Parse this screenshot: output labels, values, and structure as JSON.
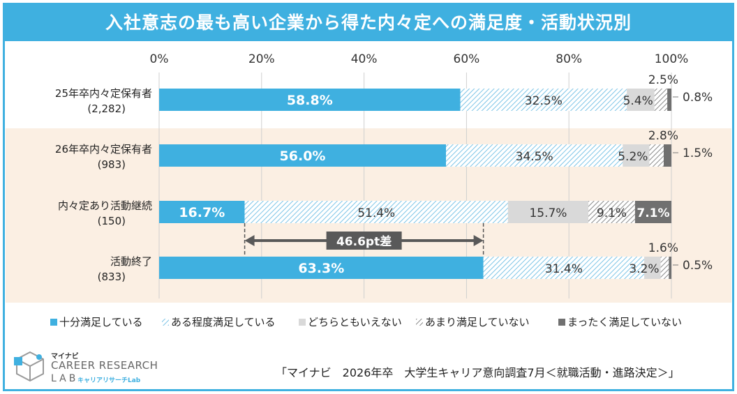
{
  "title": "入社意志の最も高い企業から得た内々定への満足度・活動状況別",
  "chart_data": {
    "type": "bar",
    "orientation": "horizontal",
    "stacked": true,
    "x_ticks": [
      "0%",
      "20%",
      "40%",
      "60%",
      "80%",
      "100%"
    ],
    "xlim": [
      0,
      100
    ],
    "categories": [
      {
        "label": "25年卒内々定保有者",
        "n": "(2,282)"
      },
      {
        "label": "26年卒内々定保有者",
        "n": "(983)"
      },
      {
        "label": "内々定あり活動継続",
        "n": "(150)"
      },
      {
        "label": "活動終了",
        "n": "(833)"
      }
    ],
    "series": [
      {
        "name": "十分満足している",
        "color": "#3fb0e0",
        "values": [
          58.8,
          56.0,
          16.7,
          63.3
        ],
        "labels": [
          "58.8%",
          "56.0%",
          "16.7%",
          "63.3%"
        ]
      },
      {
        "name": "ある程度満足している",
        "color": "#a8d8ee",
        "values": [
          32.5,
          34.5,
          51.4,
          31.4
        ],
        "labels": [
          "32.5%",
          "34.5%",
          "51.4%",
          "31.4%"
        ]
      },
      {
        "name": "どちらともいえない",
        "color": "#d9d9d9",
        "values": [
          5.4,
          5.2,
          15.7,
          3.2
        ],
        "labels": [
          "5.4%",
          "5.2%",
          "15.7%",
          "3.2%"
        ]
      },
      {
        "name": "あまり満足していない",
        "color": "#9a9a9a",
        "values": [
          2.5,
          2.8,
          9.1,
          1.6
        ],
        "labels": [
          "2.5%",
          "2.8%",
          "9.1%",
          "1.6%"
        ]
      },
      {
        "name": "まったく満足していない",
        "color": "#707070",
        "values": [
          0.8,
          1.5,
          7.1,
          0.5
        ],
        "labels": [
          "0.8%",
          "1.5%",
          "7.1%",
          "0.5%"
        ]
      }
    ],
    "highlight_rows": [
      1,
      2
    ],
    "annotation": {
      "text": "46.6pt差",
      "from": 16.7,
      "to": 63.3
    }
  },
  "source": "「マイナビ　2026年卒　大学生キャリア意向調査7月＜就職活動・進路決定＞」",
  "logo": {
    "small": "マイナビ",
    "main": "CAREER RESEARCH",
    "lab": "LAB",
    "kana": "キャリアリサーチLab"
  }
}
